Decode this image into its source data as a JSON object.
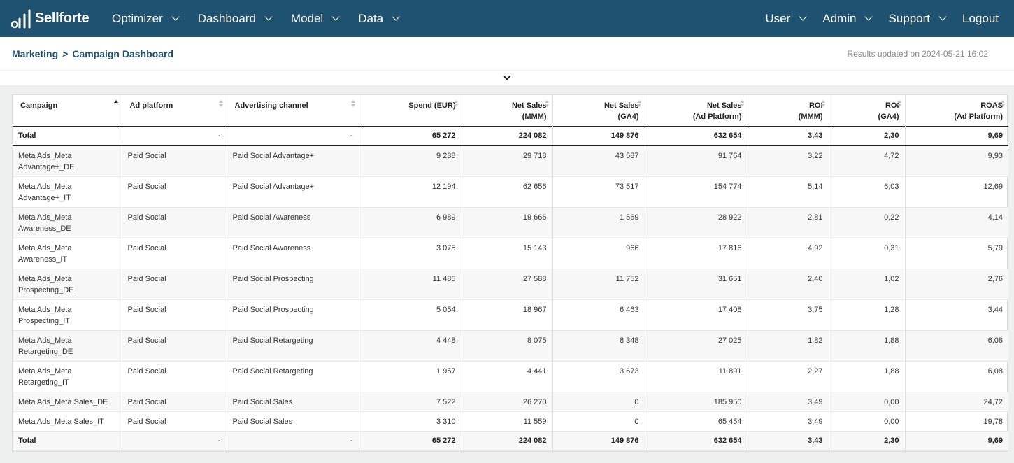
{
  "app": {
    "logo_text": "Sellforte",
    "nav_left": [
      "Optimizer",
      "Dashboard",
      "Model",
      "Data"
    ],
    "nav_right": [
      "User",
      "Admin",
      "Support"
    ],
    "logout": "Logout"
  },
  "breadcrumb": {
    "parent": "Marketing",
    "separator": ">",
    "current": "Campaign Dashboard"
  },
  "updated": "Results updated on 2024-05-21 16:02",
  "table": {
    "headers": {
      "campaign": "Campaign",
      "ad_platform": "Ad platform",
      "channel": "Advertising channel",
      "spend": "Spend (EUR)",
      "ns_mmm_1": "Net Sales",
      "ns_mmm_2": "(MMM)",
      "ns_ga4_1": "Net Sales",
      "ns_ga4_2": "(GA4)",
      "ns_ad_1": "Net Sales",
      "ns_ad_2": "(Ad Platform)",
      "roi_mmm_1": "ROI",
      "roi_mmm_2": "(MMM)",
      "roi_ga4_1": "ROI",
      "roi_ga4_2": "(GA4)",
      "roas_1": "ROAS",
      "roas_2": "(Ad Platform)"
    },
    "total": {
      "label": "Total",
      "ad_platform": "-",
      "channel": "-",
      "spend": "65 272",
      "ns_mmm": "224 082",
      "ns_ga4": "149 876",
      "ns_ad": "632 654",
      "roi_mmm": "3,43",
      "roi_ga4": "2,30",
      "roas": "9,69"
    },
    "rows": [
      {
        "c1": "Meta Ads_Meta",
        "c2": "Advantage+_DE",
        "platform": "Paid Social",
        "channel": "Paid Social Advantage+",
        "spend": "9 238",
        "ns_mmm": "29 718",
        "ns_ga4": "43 587",
        "ns_ad": "91 764",
        "roi_mmm": "3,22",
        "roi_ga4": "4,72",
        "roas": "9,93"
      },
      {
        "c1": "Meta Ads_Meta",
        "c2": "Advantage+_IT",
        "platform": "Paid Social",
        "channel": "Paid Social Advantage+",
        "spend": "12 194",
        "ns_mmm": "62 656",
        "ns_ga4": "73 517",
        "ns_ad": "154 774",
        "roi_mmm": "5,14",
        "roi_ga4": "6,03",
        "roas": "12,69"
      },
      {
        "c1": "Meta Ads_Meta",
        "c2": "Awareness_DE",
        "platform": "Paid Social",
        "channel": "Paid Social Awareness",
        "spend": "6 989",
        "ns_mmm": "19 666",
        "ns_ga4": "1 569",
        "ns_ad": "28 922",
        "roi_mmm": "2,81",
        "roi_ga4": "0,22",
        "roas": "4,14"
      },
      {
        "c1": "Meta Ads_Meta",
        "c2": "Awareness_IT",
        "platform": "Paid Social",
        "channel": "Paid Social Awareness",
        "spend": "3 075",
        "ns_mmm": "15 143",
        "ns_ga4": "966",
        "ns_ad": "17 816",
        "roi_mmm": "4,92",
        "roi_ga4": "0,31",
        "roas": "5,79"
      },
      {
        "c1": "Meta Ads_Meta",
        "c2": "Prospecting_DE",
        "platform": "Paid Social",
        "channel": "Paid Social Prospecting",
        "spend": "11 485",
        "ns_mmm": "27 588",
        "ns_ga4": "11 752",
        "ns_ad": "31 651",
        "roi_mmm": "2,40",
        "roi_ga4": "1,02",
        "roas": "2,76"
      },
      {
        "c1": "Meta Ads_Meta",
        "c2": "Prospecting_IT",
        "platform": "Paid Social",
        "channel": "Paid Social Prospecting",
        "spend": "5 054",
        "ns_mmm": "18 967",
        "ns_ga4": "6 463",
        "ns_ad": "17 408",
        "roi_mmm": "3,75",
        "roi_ga4": "1,28",
        "roas": "3,44"
      },
      {
        "c1": "Meta Ads_Meta",
        "c2": "Retargeting_DE",
        "platform": "Paid Social",
        "channel": "Paid Social Retargeting",
        "spend": "4 448",
        "ns_mmm": "8 075",
        "ns_ga4": "8 348",
        "ns_ad": "27 025",
        "roi_mmm": "1,82",
        "roi_ga4": "1,88",
        "roas": "6,08"
      },
      {
        "c1": "Meta Ads_Meta",
        "c2": "Retargeting_IT",
        "platform": "Paid Social",
        "channel": "Paid Social Retargeting",
        "spend": "1 957",
        "ns_mmm": "4 441",
        "ns_ga4": "3 673",
        "ns_ad": "11 891",
        "roi_mmm": "2,27",
        "roi_ga4": "1,88",
        "roas": "6,08"
      },
      {
        "c1": "Meta Ads_Meta Sales_DE",
        "c2": "",
        "platform": "Paid Social",
        "channel": "Paid Social Sales",
        "spend": "7 522",
        "ns_mmm": "26 270",
        "ns_ga4": "0",
        "ns_ad": "185 950",
        "roi_mmm": "3,49",
        "roi_ga4": "0,00",
        "roas": "24,72"
      },
      {
        "c1": "Meta Ads_Meta Sales_IT",
        "c2": "",
        "platform": "Paid Social",
        "channel": "Paid Social Sales",
        "spend": "3 310",
        "ns_mmm": "11 559",
        "ns_ga4": "0",
        "ns_ad": "65 454",
        "roi_mmm": "3,49",
        "roi_ga4": "0,00",
        "roas": "19,78"
      }
    ]
  }
}
